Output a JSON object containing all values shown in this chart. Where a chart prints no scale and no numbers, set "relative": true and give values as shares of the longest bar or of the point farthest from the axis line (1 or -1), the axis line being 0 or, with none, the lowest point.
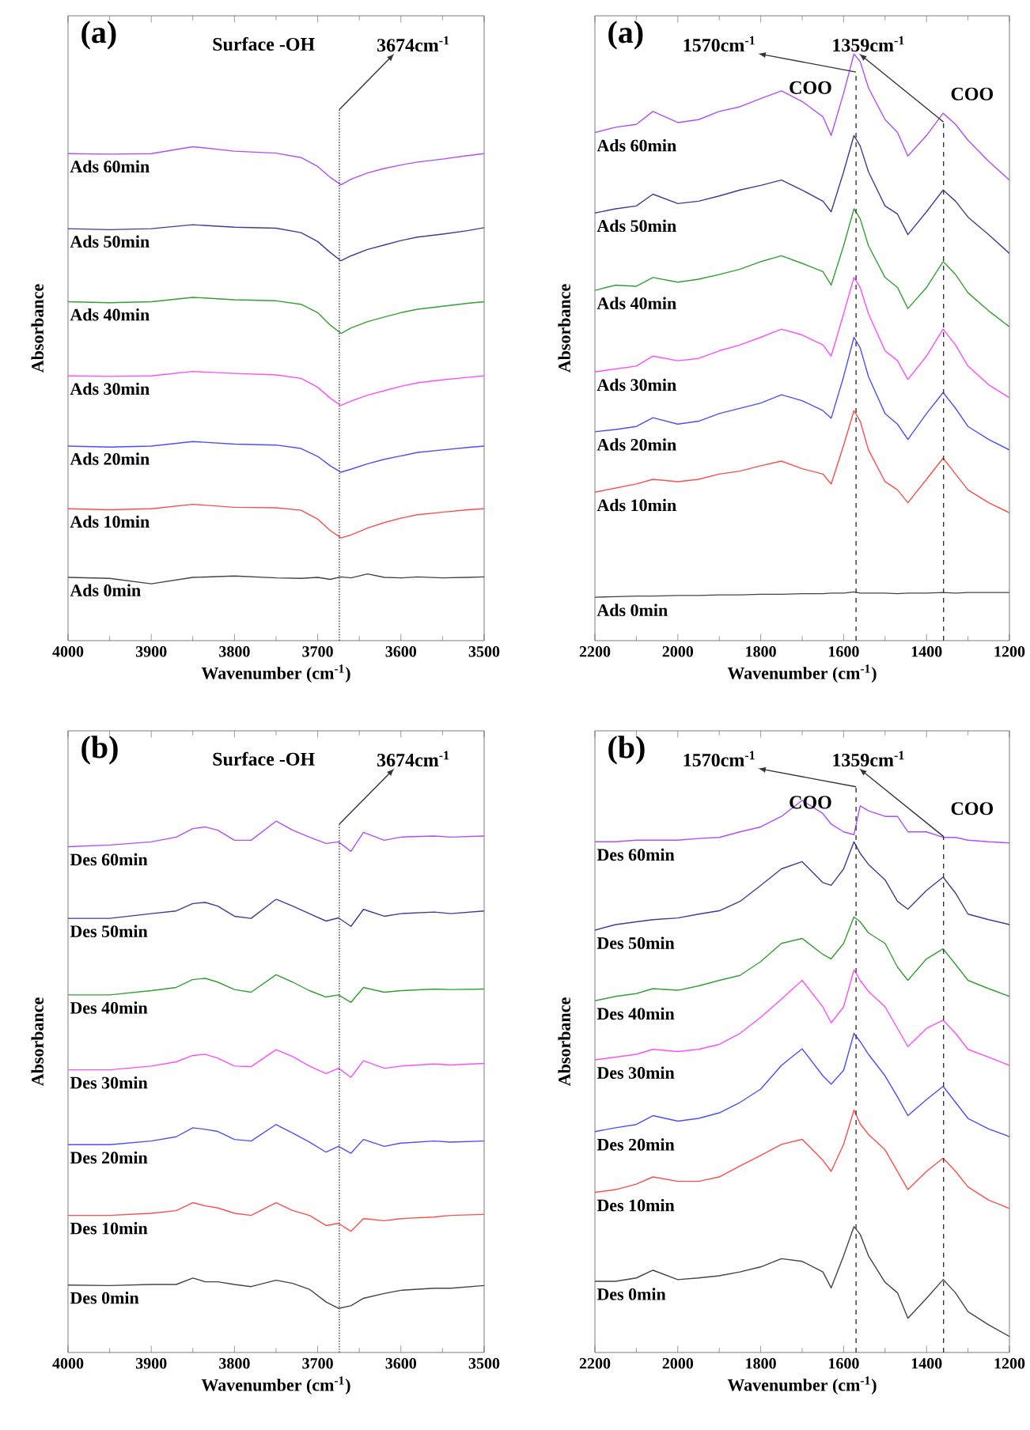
{
  "chart_data": [
    {
      "type": "line",
      "title": "(a)",
      "xlabel": "Wavenumber (cm$^{-1}$)",
      "ylabel": "Absorbance",
      "relative": true,
      "tick_labels": "x",
      "xlim": [
        4000,
        3500
      ],
      "xticks": [
        4000,
        3900,
        3800,
        3700,
        3600,
        3500
      ],
      "annotations": [
        "Surface -OH"
      ],
      "ref_lines": [
        {
          "axis": "x",
          "value": 3674,
          "label": "3674cm$^{-1}$",
          "line_style": "dotted"
        }
      ],
      "x": [
        4000,
        3950,
        3900,
        3850,
        3800,
        3750,
        3720,
        3700,
        3685,
        3672,
        3660,
        3640,
        3620,
        3600,
        3580,
        3550,
        3520,
        3500
      ],
      "series": [
        {
          "name": "Ads 60min",
          "color": "#b04dff",
          "values": [
            0.986,
            0.985,
            0.986,
            1.0,
            0.991,
            0.987,
            0.978,
            0.96,
            0.938,
            0.923,
            0.934,
            0.947,
            0.956,
            0.963,
            0.969,
            0.975,
            0.982,
            0.986
          ]
        },
        {
          "name": "Ads 50min",
          "color": "#3d3d99",
          "values": [
            0.834,
            0.832,
            0.834,
            0.842,
            0.837,
            0.835,
            0.826,
            0.808,
            0.786,
            0.769,
            0.779,
            0.792,
            0.801,
            0.81,
            0.817,
            0.823,
            0.83,
            0.836
          ]
        },
        {
          "name": "Ads 40min",
          "color": "#33a033",
          "values": [
            0.686,
            0.684,
            0.686,
            0.695,
            0.69,
            0.688,
            0.681,
            0.664,
            0.639,
            0.622,
            0.633,
            0.646,
            0.655,
            0.664,
            0.671,
            0.677,
            0.683,
            0.686
          ]
        },
        {
          "name": "Ads 30min",
          "color": "#ff4dff",
          "values": [
            0.536,
            0.535,
            0.536,
            0.545,
            0.541,
            0.538,
            0.531,
            0.513,
            0.491,
            0.476,
            0.485,
            0.497,
            0.506,
            0.515,
            0.522,
            0.528,
            0.533,
            0.536
          ]
        },
        {
          "name": "Ads 20min",
          "color": "#4d4dff",
          "values": [
            0.394,
            0.392,
            0.394,
            0.403,
            0.398,
            0.396,
            0.389,
            0.373,
            0.354,
            0.341,
            0.347,
            0.358,
            0.367,
            0.374,
            0.381,
            0.386,
            0.391,
            0.394
          ]
        },
        {
          "name": "Ads 10min",
          "color": "#ff4d4d",
          "values": [
            0.267,
            0.265,
            0.267,
            0.276,
            0.27,
            0.269,
            0.264,
            0.246,
            0.223,
            0.208,
            0.214,
            0.228,
            0.239,
            0.248,
            0.255,
            0.26,
            0.265,
            0.267
          ]
        },
        {
          "name": "Ads 0min",
          "color": "#444444",
          "values": [
            0.128,
            0.126,
            0.115,
            0.128,
            0.131,
            0.127,
            0.126,
            0.128,
            0.124,
            0.129,
            0.127,
            0.135,
            0.128,
            0.127,
            0.129,
            0.127,
            0.128,
            0.129
          ]
        }
      ]
    },
    {
      "type": "line",
      "title": "(a)",
      "xlabel": "Wavenumber (cm$^{-1}$)",
      "ylabel": "Absorbance",
      "relative": true,
      "tick_labels": "x",
      "xlim": [
        2200,
        1200
      ],
      "xticks": [
        2200,
        2000,
        1800,
        1600,
        1400,
        1200
      ],
      "annotations": [
        "COO",
        "COO"
      ],
      "ref_lines": [
        {
          "axis": "x",
          "value": 1570,
          "label": "1570cm$^{-1}$",
          "line_style": "dashed"
        },
        {
          "axis": "x",
          "value": 1359,
          "label": "1359cm$^{-1}$",
          "line_style": "dashed"
        }
      ],
      "x": [
        2200,
        2150,
        2100,
        2060,
        2000,
        1950,
        1900,
        1850,
        1800,
        1750,
        1700,
        1650,
        1630,
        1600,
        1575,
        1560,
        1540,
        1500,
        1470,
        1445,
        1400,
        1360,
        1330,
        1300,
        1250,
        1200
      ],
      "series": [
        {
          "name": "Ads 60min",
          "color": "#b04dff",
          "values": [
            0.866,
            0.875,
            0.88,
            0.902,
            0.883,
            0.888,
            0.902,
            0.91,
            0.924,
            0.937,
            0.919,
            0.893,
            0.861,
            0.933,
            1.0,
            0.987,
            0.942,
            0.888,
            0.866,
            0.826,
            0.861,
            0.899,
            0.88,
            0.853,
            0.817,
            0.785
          ]
        },
        {
          "name": "Ads 50min",
          "color": "#3d3d99",
          "values": [
            0.729,
            0.736,
            0.741,
            0.761,
            0.745,
            0.749,
            0.758,
            0.768,
            0.776,
            0.785,
            0.768,
            0.749,
            0.731,
            0.799,
            0.861,
            0.843,
            0.799,
            0.741,
            0.727,
            0.692,
            0.731,
            0.768,
            0.749,
            0.722,
            0.692,
            0.66
          ]
        },
        {
          "name": "Ads 40min",
          "color": "#33a033",
          "values": [
            0.597,
            0.606,
            0.604,
            0.619,
            0.611,
            0.616,
            0.624,
            0.633,
            0.646,
            0.656,
            0.643,
            0.629,
            0.606,
            0.673,
            0.736,
            0.719,
            0.673,
            0.619,
            0.602,
            0.566,
            0.602,
            0.646,
            0.624,
            0.593,
            0.562,
            0.535
          ]
        },
        {
          "name": "Ads 30min",
          "color": "#ff4dff",
          "values": [
            0.458,
            0.463,
            0.468,
            0.485,
            0.477,
            0.481,
            0.494,
            0.504,
            0.517,
            0.531,
            0.521,
            0.504,
            0.485,
            0.557,
            0.619,
            0.602,
            0.557,
            0.494,
            0.477,
            0.445,
            0.485,
            0.531,
            0.504,
            0.468,
            0.436,
            0.414
          ]
        },
        {
          "name": "Ads 20min",
          "color": "#4d4dff",
          "values": [
            0.356,
            0.36,
            0.365,
            0.38,
            0.369,
            0.374,
            0.387,
            0.396,
            0.405,
            0.419,
            0.409,
            0.392,
            0.379,
            0.45,
            0.517,
            0.499,
            0.45,
            0.387,
            0.369,
            0.343,
            0.387,
            0.423,
            0.396,
            0.365,
            0.343,
            0.325
          ]
        },
        {
          "name": "Ads 10min",
          "color": "#ff4d4d",
          "values": [
            0.253,
            0.26,
            0.267,
            0.275,
            0.271,
            0.275,
            0.284,
            0.289,
            0.298,
            0.306,
            0.293,
            0.284,
            0.267,
            0.333,
            0.392,
            0.374,
            0.325,
            0.271,
            0.257,
            0.235,
            0.275,
            0.311,
            0.284,
            0.257,
            0.235,
            0.218
          ]
        },
        {
          "name": "Ads 0min",
          "color": "#444444",
          "values": [
            0.074,
            0.075,
            0.076,
            0.076,
            0.077,
            0.077,
            0.078,
            0.078,
            0.079,
            0.079,
            0.08,
            0.08,
            0.081,
            0.081,
            0.083,
            0.081,
            0.081,
            0.081,
            0.08,
            0.081,
            0.081,
            0.082,
            0.081,
            0.082,
            0.082,
            0.082
          ]
        }
      ]
    },
    {
      "type": "line",
      "title": "(b)",
      "xlabel": "Wavenumber (cm$^{-1}$)",
      "ylabel": "Absorbance",
      "relative": true,
      "tick_labels": "x",
      "xlim": [
        4000,
        3500
      ],
      "xticks": [
        4000,
        3900,
        3800,
        3700,
        3600,
        3500
      ],
      "annotations": [
        "Surface -OH"
      ],
      "ref_lines": [
        {
          "axis": "x",
          "value": 3674,
          "label": "3674cm$^{-1}$",
          "line_style": "dotted"
        }
      ],
      "x": [
        4000,
        3950,
        3900,
        3870,
        3850,
        3835,
        3820,
        3800,
        3780,
        3750,
        3730,
        3710,
        3690,
        3675,
        3660,
        3645,
        3620,
        3600,
        3560,
        3540,
        3500
      ],
      "series": [
        {
          "name": "Des 60min",
          "color": "#b04dff",
          "values": [
            0.952,
            0.955,
            0.961,
            0.97,
            0.986,
            0.989,
            0.983,
            0.964,
            0.964,
            1.0,
            0.983,
            0.97,
            0.958,
            0.961,
            0.943,
            0.979,
            0.964,
            0.97,
            0.972,
            0.97,
            0.972
          ]
        },
        {
          "name": "Des 50min",
          "color": "#3d3d99",
          "values": [
            0.817,
            0.817,
            0.826,
            0.831,
            0.845,
            0.847,
            0.84,
            0.821,
            0.817,
            0.853,
            0.84,
            0.826,
            0.812,
            0.818,
            0.802,
            0.834,
            0.821,
            0.826,
            0.829,
            0.826,
            0.831
          ]
        },
        {
          "name": "Des 40min",
          "color": "#33a033",
          "values": [
            0.673,
            0.673,
            0.681,
            0.687,
            0.702,
            0.704,
            0.697,
            0.683,
            0.678,
            0.711,
            0.697,
            0.681,
            0.669,
            0.673,
            0.659,
            0.687,
            0.678,
            0.681,
            0.684,
            0.683,
            0.684
          ]
        },
        {
          "name": "Des 30min",
          "color": "#ff4dff",
          "values": [
            0.532,
            0.532,
            0.539,
            0.547,
            0.559,
            0.561,
            0.554,
            0.539,
            0.538,
            0.57,
            0.557,
            0.539,
            0.525,
            0.535,
            0.518,
            0.549,
            0.535,
            0.539,
            0.543,
            0.541,
            0.544
          ]
        },
        {
          "name": "Des 20min",
          "color": "#4d4dff",
          "values": [
            0.391,
            0.391,
            0.398,
            0.406,
            0.423,
            0.42,
            0.416,
            0.401,
            0.398,
            0.429,
            0.413,
            0.396,
            0.377,
            0.388,
            0.375,
            0.401,
            0.388,
            0.394,
            0.398,
            0.396,
            0.398
          ]
        },
        {
          "name": "Des 10min",
          "color": "#ff4d4d",
          "values": [
            0.258,
            0.258,
            0.262,
            0.267,
            0.282,
            0.276,
            0.272,
            0.262,
            0.258,
            0.282,
            0.267,
            0.258,
            0.239,
            0.243,
            0.228,
            0.252,
            0.248,
            0.252,
            0.255,
            0.258,
            0.26
          ]
        },
        {
          "name": "Des 0min",
          "color": "#444444",
          "values": [
            0.127,
            0.126,
            0.128,
            0.128,
            0.14,
            0.133,
            0.133,
            0.128,
            0.124,
            0.136,
            0.13,
            0.119,
            0.095,
            0.083,
            0.088,
            0.102,
            0.111,
            0.117,
            0.121,
            0.121,
            0.126
          ]
        }
      ]
    },
    {
      "type": "line",
      "title": "(b)",
      "xlabel": "Wavenumber (cm$^{-1}$)",
      "ylabel": "Absorbance",
      "relative": true,
      "tick_labels": "x",
      "xlim": [
        2200,
        1200
      ],
      "xticks": [
        2200,
        2000,
        1800,
        1600,
        1400,
        1200
      ],
      "annotations": [
        "COO",
        "COO"
      ],
      "ref_lines": [
        {
          "axis": "x",
          "value": 1570,
          "label": "1570cm$^{-1}$",
          "line_style": "dashed"
        },
        {
          "axis": "x",
          "value": 1359,
          "label": "1359cm$^{-1}$",
          "line_style": "dashed"
        }
      ],
      "x": [
        2200,
        2150,
        2100,
        2060,
        2000,
        1950,
        1900,
        1850,
        1800,
        1750,
        1700,
        1650,
        1630,
        1600,
        1575,
        1560,
        1540,
        1500,
        1470,
        1445,
        1400,
        1360,
        1330,
        1300,
        1250,
        1200
      ],
      "series": [
        {
          "name": "Des 60min",
          "color": "#b04dff",
          "values": [
            0.925,
            0.925,
            0.928,
            0.928,
            0.928,
            0.931,
            0.933,
            0.943,
            0.952,
            0.971,
            1.0,
            0.976,
            0.957,
            0.943,
            0.938,
            0.99,
            0.981,
            0.971,
            0.971,
            0.943,
            0.943,
            0.933,
            0.933,
            0.928,
            0.925,
            0.923
          ]
        },
        {
          "name": "Des 50min",
          "color": "#3d3d99",
          "values": [
            0.765,
            0.775,
            0.78,
            0.784,
            0.787,
            0.794,
            0.8,
            0.817,
            0.846,
            0.876,
            0.889,
            0.851,
            0.846,
            0.876,
            0.925,
            0.904,
            0.884,
            0.856,
            0.817,
            0.803,
            0.837,
            0.861,
            0.832,
            0.794,
            0.784,
            0.775
          ]
        },
        {
          "name": "Des 40min",
          "color": "#33a033",
          "values": [
            0.637,
            0.645,
            0.65,
            0.659,
            0.656,
            0.664,
            0.674,
            0.683,
            0.708,
            0.741,
            0.75,
            0.721,
            0.713,
            0.741,
            0.789,
            0.78,
            0.76,
            0.741,
            0.698,
            0.674,
            0.713,
            0.731,
            0.703,
            0.674,
            0.659,
            0.645
          ]
        },
        {
          "name": "Des 30min",
          "color": "#ff4dff",
          "values": [
            0.53,
            0.535,
            0.54,
            0.549,
            0.545,
            0.549,
            0.558,
            0.578,
            0.607,
            0.64,
            0.674,
            0.626,
            0.597,
            0.626,
            0.693,
            0.674,
            0.654,
            0.626,
            0.587,
            0.554,
            0.587,
            0.602,
            0.578,
            0.549,
            0.535,
            0.52
          ]
        },
        {
          "name": "Des 20min",
          "color": "#4d4dff",
          "values": [
            0.4,
            0.407,
            0.413,
            0.429,
            0.419,
            0.424,
            0.434,
            0.453,
            0.477,
            0.52,
            0.55,
            0.501,
            0.486,
            0.511,
            0.578,
            0.563,
            0.54,
            0.501,
            0.463,
            0.429,
            0.458,
            0.482,
            0.453,
            0.424,
            0.405,
            0.391
          ]
        },
        {
          "name": "Des 10min",
          "color": "#ff4d4d",
          "values": [
            0.29,
            0.295,
            0.305,
            0.318,
            0.31,
            0.31,
            0.318,
            0.338,
            0.357,
            0.377,
            0.386,
            0.348,
            0.328,
            0.377,
            0.439,
            0.414,
            0.395,
            0.367,
            0.328,
            0.295,
            0.328,
            0.352,
            0.328,
            0.3,
            0.276,
            0.261
          ]
        },
        {
          "name": "Des 0min",
          "color": "#444444",
          "values": [
            0.129,
            0.129,
            0.135,
            0.149,
            0.132,
            0.135,
            0.139,
            0.146,
            0.155,
            0.17,
            0.165,
            0.146,
            0.117,
            0.175,
            0.228,
            0.214,
            0.175,
            0.127,
            0.108,
            0.062,
            0.098,
            0.132,
            0.108,
            0.074,
            0.05,
            0.029
          ]
        }
      ]
    }
  ]
}
